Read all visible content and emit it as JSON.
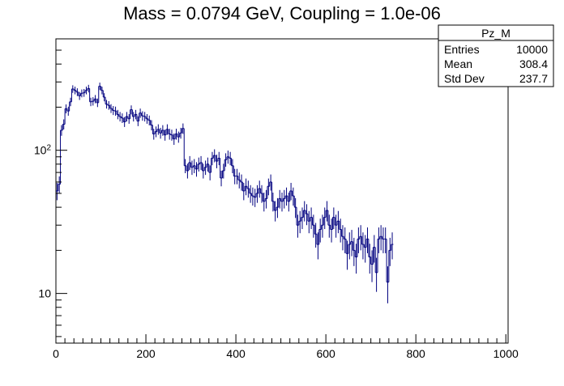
{
  "chart_data": {
    "type": "histogram",
    "title": "Mass = 0.0794 GeV, Coupling = 1.0e-06",
    "xlabel": "",
    "ylabel": "",
    "x_range": [
      0,
      1005
    ],
    "y_range": [
      4.5,
      600
    ],
    "y_scale": "log",
    "grid": false,
    "legend": "top-right stats box",
    "x_ticks": [
      0,
      200,
      400,
      600,
      800,
      1000
    ],
    "x_tick_labels": [
      "0",
      "200",
      "400",
      "600",
      "800",
      "1000"
    ],
    "y_tick_labels": [
      {
        "value": 10,
        "label": "10"
      },
      {
        "value": 100,
        "label": "10",
        "sup": "2"
      }
    ],
    "bin_width": 5,
    "series": [
      {
        "color": "#00007f",
        "values": [
          52,
          58,
          138,
          152,
          195,
          188,
          218,
          268,
          262,
          255,
          240,
          250,
          252,
          262,
          270,
          218,
          220,
          228,
          215,
          280,
          262,
          235,
          210,
          206,
          196,
          190,
          188,
          178,
          172,
          168,
          158,
          172,
          166,
          192,
          172,
          178,
          160,
          182,
          174,
          172,
          166,
          162,
          150,
          130,
          135,
          140,
          132,
          138,
          128,
          140,
          130,
          128,
          120,
          130,
          124,
          132,
          142,
          78,
          72,
          82,
          76,
          78,
          74,
          80,
          82,
          72,
          76,
          80,
          70,
          88,
          92,
          84,
          88,
          64,
          72,
          86,
          90,
          88,
          78,
          66,
          66,
          62,
          60,
          52,
          56,
          54,
          50,
          48,
          47,
          50,
          54,
          50,
          44,
          46,
          56,
          60,
          44,
          38,
          40,
          46,
          44,
          46,
          48,
          44,
          52,
          48,
          40,
          30,
          32,
          34,
          38,
          36,
          32,
          34,
          30,
          26,
          22,
          28,
          30,
          34,
          38,
          30,
          28,
          34,
          30,
          32,
          28,
          25,
          24,
          19,
          22,
          23,
          20,
          18,
          24,
          25,
          22,
          21,
          24,
          18,
          16,
          21,
          14,
          24,
          25,
          24,
          24,
          12,
          20,
          22
        ]
      }
    ],
    "stats": {
      "name": "Pz_M",
      "rows": [
        {
          "label": "Entries",
          "value": "10000"
        },
        {
          "label": "Mean",
          "value": "308.4"
        },
        {
          "label": "Std Dev",
          "value": "237.7"
        }
      ]
    }
  }
}
